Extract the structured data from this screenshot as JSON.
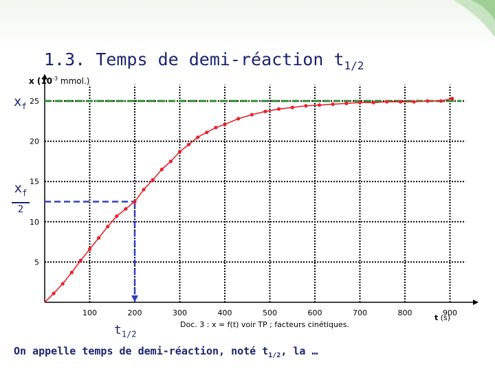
{
  "slide": {
    "title_main": "1.3. Temps de demi-réaction t",
    "title_sub": "1/2",
    "bottom_main": "On appelle temps de demi-réaction, noté t",
    "bottom_sub": "1/2",
    "bottom_tail": ", la …"
  },
  "annotations": {
    "xf_letter": "x",
    "xf_sub": "f",
    "xf2_denominator": "2",
    "t12_letter": "t",
    "t12_sub": "1/2",
    "caption": "Doc. 3 : x = f(t) voir TP ; facteurs cinétiques.",
    "ylabel_main": "x (10",
    "ylabel_exp": "-3",
    "ylabel_unit": " mmol.)",
    "xlabel_var": "t",
    "xlabel_unit": "(s)"
  },
  "colors": {
    "curve": "#e8232a",
    "xf_line": "#2f8a2f",
    "half_line": "#2f3fbf",
    "grid": "#000000",
    "accent_text": "#1a2470"
  },
  "chart_data": {
    "type": "line",
    "xlim": [
      0,
      950
    ],
    "ylim": [
      0,
      27
    ],
    "xticks": [
      100,
      200,
      300,
      400,
      500,
      600,
      700,
      800,
      900
    ],
    "yticks": [
      5,
      10,
      15,
      20,
      25
    ],
    "grid": true,
    "xf": 25,
    "xf_half": 12.5,
    "t_half": 200,
    "series": [
      {
        "x": [
          0,
          20,
          40,
          60,
          80,
          100,
          120,
          140,
          160,
          180,
          200,
          220,
          240,
          260,
          280,
          300,
          320,
          340,
          360,
          380,
          400,
          430,
          460,
          490,
          520,
          550,
          580,
          610,
          640,
          670,
          700,
          730,
          760,
          790,
          820,
          850,
          880,
          905
        ],
        "y": [
          0,
          1.1,
          2.3,
          3.7,
          5.2,
          6.6,
          8.0,
          9.4,
          10.7,
          11.6,
          12.5,
          14.0,
          15.2,
          16.5,
          17.5,
          18.7,
          19.6,
          20.5,
          21.1,
          21.7,
          22.1,
          22.8,
          23.3,
          23.7,
          24.0,
          24.2,
          24.4,
          24.5,
          24.6,
          24.7,
          24.8,
          24.8,
          24.9,
          24.9,
          24.9,
          25.0,
          25.0,
          25.3
        ]
      }
    ]
  }
}
